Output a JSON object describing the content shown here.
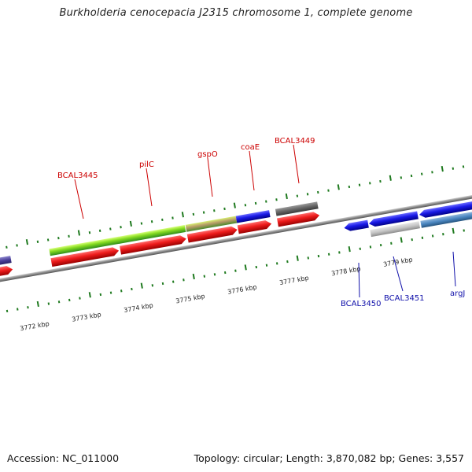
{
  "title": "Burkholderia cenocepacia J2315 chromosome 1, complete genome",
  "footer": {
    "accession": "Accession: NC_011000",
    "stats": "Topology: circular; Length: 3,870,082 bp; Genes: 3,557"
  },
  "kbp_labels": [
    "3772 kbp",
    "3773 kbp",
    "3774 kbp",
    "3775 kbp",
    "3776 kbp",
    "3777 kbp",
    "3778 kbp",
    "3779 kbp"
  ],
  "gene_labels_forward": [
    "BCAL3445",
    "pilC",
    "gspO",
    "coaE",
    "BCAL3449"
  ],
  "gene_labels_reverse": [
    "BCAL3450",
    "BCAL3451",
    "argJ"
  ],
  "colors": {
    "strand_forward": "#e8141c",
    "strand_reverse": "#1a1ae0",
    "tick": "#1f7a1f",
    "label_forward": "#cc0000",
    "label_reverse": "#1010aa",
    "backbone": "#8a8a8a"
  }
}
